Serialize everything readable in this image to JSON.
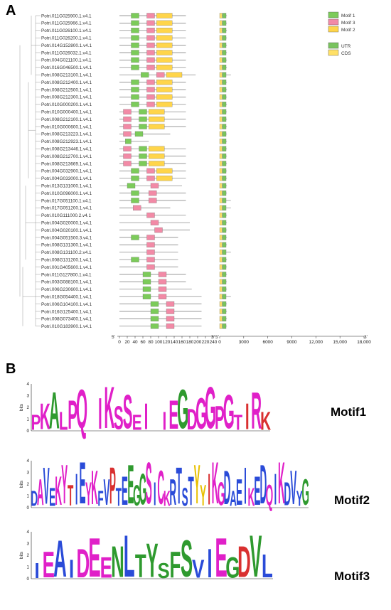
{
  "panel_a_letter": "A",
  "panel_b_letter": "B",
  "genes": [
    "Potri.011G025900.1.v4.1",
    "Potri.011G025966.1.v4.1",
    "Potri.011G026100.1.v4.1",
    "Potri.011G026200.1.v4.1",
    "Potri.014G152800.1.v4.1",
    "Potri.011G026032.1.v4.1",
    "Potri.004G021100.1.v4.1",
    "Potri.016G046500.1.v4.1",
    "Potri.008G213100.1.v4.1",
    "Potri.008G212400.1.v4.1",
    "Potri.008G212500.1.v4.1",
    "Potri.008G212300.1.v4.1",
    "Potri.010G000200.1.v4.1",
    "Potri.010G000400.1.v4.1",
    "Potri.008G212100.1.v4.1",
    "Potri.010G000600.1.v4.1",
    "Potri.008G213223.1.v4.1",
    "Potri.008G212923.1.v4.1",
    "Potri.008G213446.1.v4.1",
    "Potri.008G212700.1.v4.1",
    "Potri.008G213669.1.v4.1",
    "Potri.004G032900.1.v4.1",
    "Potri.004G033000.1.v4.1",
    "Potri.013G131000.1.v4.1",
    "Potri.010G096000.1.v4.1",
    "Potri.017G051100.1.v4.1",
    "Potri.017G051200.1.v4.1",
    "Potri.010G111000.2.v4.1",
    "Potri.004G020000.1.v4.1",
    "Potri.004G020100.1.v4.1",
    "Potri.004G051500.3.v4.1",
    "Potri.008G131300.1.v4.1",
    "Potri.008G131100.2.v4.1",
    "Potri.008G131200.1.v4.1",
    "Potri.001G405600.1.v4.1",
    "Potri.011G127800.1.v4.1",
    "Potri.003G088100.1.v4.1",
    "Potri.006G230600.1.v4.1",
    "Potri.018G054400.1.v4.1",
    "Potri.006G104100.1.v4.1",
    "Potri.016G125400.1.v4.1",
    "Potri.008G073400.1.v4.1",
    "Potri.010G183900.1.v4.1"
  ],
  "legend": {
    "motif1": "Motif 1",
    "motif3": "Motif 3",
    "motif2": "Motif 2",
    "utr": "UTR",
    "cds": "CDS"
  },
  "colors": {
    "motif1": "#7ccb5a",
    "motif2": "#ffd54a",
    "motif3": "#f28aa6",
    "utr": "#79c35e",
    "cds": "#ffe066",
    "line": "#777777"
  },
  "axis_motif": {
    "start_label": "5'",
    "end_label": "3'",
    "ticks": [
      "0",
      "20",
      "40",
      "60",
      "80",
      "100",
      "120",
      "140",
      "160",
      "180",
      "200",
      "220",
      "240"
    ]
  },
  "axis_gene": {
    "start_label": "5'",
    "end_label": "3'",
    "ticks": [
      "0",
      "3000",
      "6000",
      "9000",
      "12,000",
      "15,000",
      "18,000"
    ]
  },
  "motif_titles": [
    "Motif1",
    "Motif2",
    "Motif3"
  ],
  "logo_axis": {
    "ylabel": "bits",
    "ticks": [
      "0",
      "1",
      "2",
      "3",
      "4"
    ]
  },
  "logos": [
    {
      "letters": "PKALPQ IKSSEI IEGDGGPGTIRK",
      "colors": "mmgmmm mmmmmm mmgmmmmmmrmr"
    },
    {
      "letters": "DAVEKYTIEYKFVPTEEGGSICKRTSTYYIKGDAEIKEDQIKDVYG",
      "colors": "bmbbmmrbbmmbbrbbgggmbmmbbbbyyrmmbbbbmbbmbmbbbg"
    },
    {
      "letters": "IEAIDEENLTYSFSVIEGDVL",
      "colors": "bmbbmmmgbgggggbbmgrgb"
    }
  ]
}
